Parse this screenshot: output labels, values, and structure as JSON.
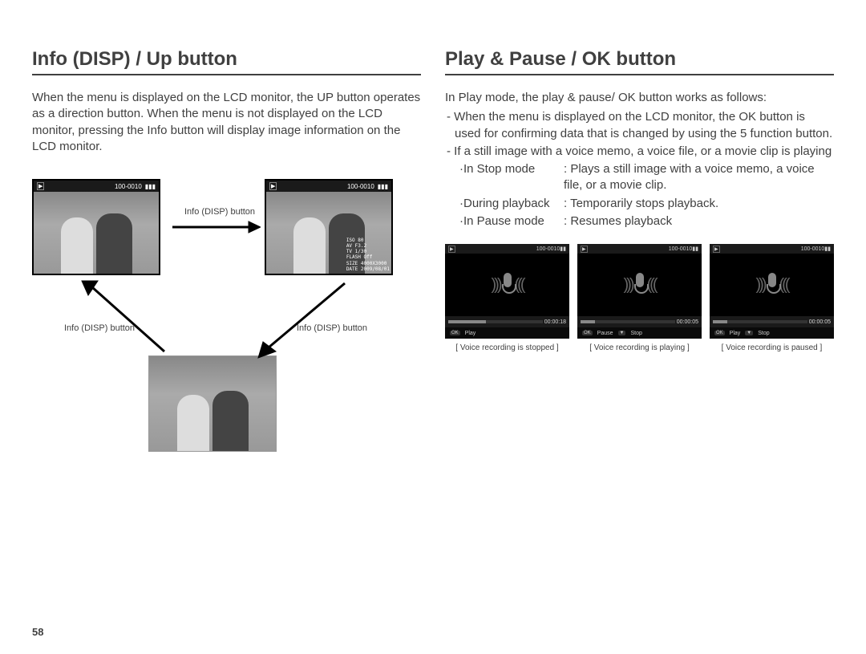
{
  "page_number": "58",
  "left": {
    "title": "Info (DISP) / Up button",
    "paragraph": "When the menu is displayed on the LCD monitor, the UP button operates as a direction button. When the menu is not displayed on the LCD monitor, pressing the Info button will display image information on the LCD monitor.",
    "caption_top": "Info (DISP) button",
    "caption_bl": "Info (DISP) button",
    "caption_br": "Info (DISP) button",
    "lcd_counter": "100-0010",
    "overlay": {
      "iso": "ISO 80",
      "av": "AV F3.2",
      "tv": "TV 1/30",
      "flash": "FLASH Off",
      "size": "SIZE 4000X3000",
      "date": "DATE 2009/08/01"
    }
  },
  "right": {
    "title": "Play & Pause / OK button",
    "paragraph": "In Play mode, the play & pause/ OK button works as follows:",
    "bullets": [
      "- When the menu is displayed on the LCD monitor, the OK button is used for confirming data that is changed by using the 5 function button.",
      "- If a still image with a voice memo, a voice file, or a movie clip is playing"
    ],
    "modes": [
      {
        "label": "·In Stop mode",
        "desc": "Plays a still image with a voice memo, a voice file, or a movie clip."
      },
      {
        "label": "·During playback",
        "desc": "Temporarily stops playback."
      },
      {
        "label": "·In Pause mode",
        "desc": "Resumes playback"
      }
    ],
    "screens": [
      {
        "counter": "100-0010",
        "time": "00:00:18",
        "progress_pct": 40,
        "bot": [
          {
            "k": "OK",
            "v": "Play"
          }
        ],
        "caption": "[ Voice recording is stopped ]"
      },
      {
        "counter": "100-0010",
        "time": "00:00:05",
        "progress_pct": 15,
        "bot": [
          {
            "k": "OK",
            "v": "Pause"
          },
          {
            "k": "▼",
            "v": "Stop"
          }
        ],
        "caption": "[ Voice recording is playing ]"
      },
      {
        "counter": "100-0010",
        "time": "00:00:05",
        "progress_pct": 15,
        "bot": [
          {
            "k": "OK",
            "v": "Play"
          },
          {
            "k": "▼",
            "v": "Stop"
          }
        ],
        "caption": "[ Voice recording is paused ]"
      }
    ]
  },
  "style": {
    "text_color": "#404040",
    "title_fontsize": 24,
    "body_fontsize": 15,
    "caption_fontsize": 11,
    "small_caption_fontsize": 10,
    "page_bg": "#ffffff",
    "lcd_bg": "#555555",
    "lcd_border": "#000000",
    "voice_bg": "#000000"
  }
}
